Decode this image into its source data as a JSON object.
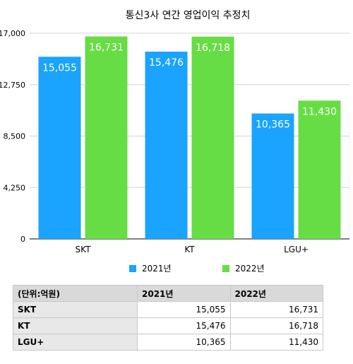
{
  "chart_data": {
    "type": "bar",
    "title": "통신3사 연간 영업이익 추정치",
    "categories": [
      "SKT",
      "KT",
      "LGU+"
    ],
    "series": [
      {
        "name": "2021년",
        "values": [
          15055,
          15476,
          10365
        ],
        "value_labels": [
          "15,055",
          "15,476",
          "10,365"
        ],
        "color": "#1aa3ff"
      },
      {
        "name": "2022년",
        "values": [
          16731,
          16718,
          11430
        ],
        "value_labels": [
          "16,731",
          "16,718",
          "11,430"
        ],
        "color": "#66dd44"
      }
    ],
    "ylim": [
      0,
      17000
    ],
    "yticks": [
      0,
      4250,
      8500,
      12750,
      17000
    ],
    "ytick_labels": [
      "0",
      "4,250",
      "8,500",
      "12,750",
      "17,000"
    ],
    "grid": true,
    "legend_position": "bottom",
    "xlabel": "",
    "ylabel": ""
  },
  "table": {
    "unit_header": "(단위:억원)",
    "columns": [
      "2021년",
      "2022년"
    ],
    "rows": [
      {
        "label": "SKT",
        "values": [
          "15,055",
          "16,731"
        ]
      },
      {
        "label": "KT",
        "values": [
          "15,476",
          "16,718"
        ]
      },
      {
        "label": "LGU+",
        "values": [
          "10,365",
          "11,430"
        ]
      }
    ]
  }
}
